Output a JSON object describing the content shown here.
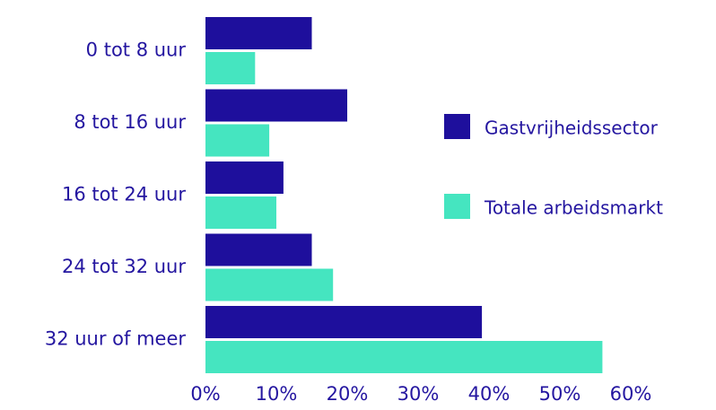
{
  "chart_data": {
    "type": "bar",
    "orientation": "horizontal",
    "categories": [
      "0 tot 8 uur",
      "8 tot 16 uur",
      "16 tot 24 uur",
      "24 tot 32 uur",
      "32 uur of meer"
    ],
    "series": [
      {
        "name": "Gastvrijheidssector",
        "color": "#1e0f9c",
        "values": [
          15,
          20,
          11,
          15,
          39
        ]
      },
      {
        "name": "Totale arbeidsmarkt",
        "color": "#45e5c0",
        "values": [
          7,
          9,
          10,
          18,
          56
        ]
      }
    ],
    "xlim": [
      0,
      60
    ],
    "xticks": [
      {
        "value": 0,
        "label": "0%"
      },
      {
        "value": 10,
        "label": "10%"
      },
      {
        "value": 20,
        "label": "20%"
      },
      {
        "value": 30,
        "label": "30%"
      },
      {
        "value": 40,
        "label": "40%"
      },
      {
        "value": 50,
        "label": "50%"
      },
      {
        "value": 60,
        "label": "60%"
      }
    ],
    "grid": false,
    "legend": "right"
  }
}
